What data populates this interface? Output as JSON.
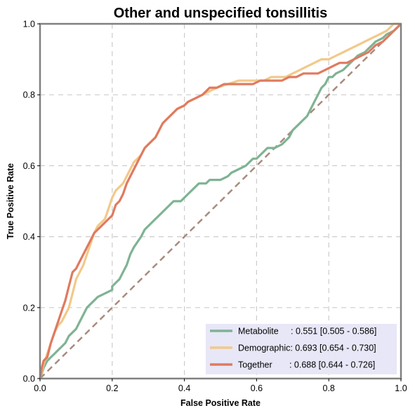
{
  "chart_data": {
    "type": "line",
    "title": "Other and unspecified tonsillitis",
    "xlabel": "False Positive Rate",
    "ylabel": "True Positive Rate",
    "xlim": [
      0,
      1
    ],
    "ylim": [
      0,
      1
    ],
    "xticks": [
      "0.0",
      "0.2",
      "0.4",
      "0.6",
      "0.8",
      "1.0"
    ],
    "yticks": [
      "0.0",
      "0.2",
      "0.4",
      "0.6",
      "0.8",
      "1.0"
    ],
    "grid": true,
    "legend_position": "bottom-right",
    "diagonal_color": "#a98b7d",
    "series": [
      {
        "name": "Metabolite",
        "legend_label": "Metabolite     : 0.551 [0.505 - 0.586]",
        "color": "#7fb393",
        "points": [
          [
            0,
            0
          ],
          [
            0.01,
            0.03
          ],
          [
            0.02,
            0.05
          ],
          [
            0.03,
            0.06
          ],
          [
            0.04,
            0.07
          ],
          [
            0.05,
            0.08
          ],
          [
            0.06,
            0.09
          ],
          [
            0.07,
            0.1
          ],
          [
            0.08,
            0.12
          ],
          [
            0.09,
            0.13
          ],
          [
            0.1,
            0.14
          ],
          [
            0.11,
            0.16
          ],
          [
            0.12,
            0.18
          ],
          [
            0.13,
            0.2
          ],
          [
            0.14,
            0.21
          ],
          [
            0.15,
            0.22
          ],
          [
            0.16,
            0.23
          ],
          [
            0.18,
            0.24
          ],
          [
            0.2,
            0.25
          ],
          [
            0.2,
            0.26
          ],
          [
            0.21,
            0.27
          ],
          [
            0.22,
            0.28
          ],
          [
            0.23,
            0.3
          ],
          [
            0.24,
            0.32
          ],
          [
            0.25,
            0.35
          ],
          [
            0.26,
            0.37
          ],
          [
            0.28,
            0.4
          ],
          [
            0.29,
            0.42
          ],
          [
            0.31,
            0.44
          ],
          [
            0.33,
            0.46
          ],
          [
            0.35,
            0.48
          ],
          [
            0.37,
            0.5
          ],
          [
            0.39,
            0.5
          ],
          [
            0.41,
            0.52
          ],
          [
            0.43,
            0.54
          ],
          [
            0.44,
            0.55
          ],
          [
            0.46,
            0.55
          ],
          [
            0.47,
            0.56
          ],
          [
            0.5,
            0.56
          ],
          [
            0.52,
            0.57
          ],
          [
            0.53,
            0.58
          ],
          [
            0.55,
            0.59
          ],
          [
            0.57,
            0.6
          ],
          [
            0.59,
            0.62
          ],
          [
            0.6,
            0.62
          ],
          [
            0.61,
            0.63
          ],
          [
            0.62,
            0.64
          ],
          [
            0.63,
            0.65
          ],
          [
            0.65,
            0.65
          ],
          [
            0.67,
            0.66
          ],
          [
            0.68,
            0.67
          ],
          [
            0.69,
            0.68
          ],
          [
            0.7,
            0.7
          ],
          [
            0.72,
            0.72
          ],
          [
            0.73,
            0.73
          ],
          [
            0.74,
            0.74
          ],
          [
            0.75,
            0.76
          ],
          [
            0.76,
            0.78
          ],
          [
            0.77,
            0.8
          ],
          [
            0.78,
            0.82
          ],
          [
            0.79,
            0.83
          ],
          [
            0.8,
            0.85
          ],
          [
            0.81,
            0.85
          ],
          [
            0.82,
            0.86
          ],
          [
            0.84,
            0.87
          ],
          [
            0.85,
            0.88
          ],
          [
            0.86,
            0.89
          ],
          [
            0.87,
            0.9
          ],
          [
            0.88,
            0.91
          ],
          [
            0.9,
            0.92
          ],
          [
            0.91,
            0.93
          ],
          [
            0.92,
            0.94
          ],
          [
            0.93,
            0.95
          ],
          [
            0.95,
            0.96
          ],
          [
            0.96,
            0.97
          ],
          [
            0.98,
            0.98
          ],
          [
            0.99,
            0.99
          ],
          [
            1,
            1
          ]
        ]
      },
      {
        "name": "Demographic",
        "legend_label": "Demographic: 0.693 [0.654 - 0.730]",
        "color": "#f2c98a",
        "points": [
          [
            0,
            0
          ],
          [
            0.01,
            0.04
          ],
          [
            0.02,
            0.07
          ],
          [
            0.03,
            0.1
          ],
          [
            0.04,
            0.13
          ],
          [
            0.05,
            0.15
          ],
          [
            0.06,
            0.16
          ],
          [
            0.07,
            0.18
          ],
          [
            0.08,
            0.2
          ],
          [
            0.09,
            0.24
          ],
          [
            0.1,
            0.28
          ],
          [
            0.11,
            0.3
          ],
          [
            0.12,
            0.32
          ],
          [
            0.13,
            0.35
          ],
          [
            0.14,
            0.38
          ],
          [
            0.15,
            0.41
          ],
          [
            0.16,
            0.43
          ],
          [
            0.18,
            0.45
          ],
          [
            0.19,
            0.48
          ],
          [
            0.2,
            0.51
          ],
          [
            0.21,
            0.53
          ],
          [
            0.23,
            0.55
          ],
          [
            0.24,
            0.57
          ],
          [
            0.25,
            0.59
          ],
          [
            0.26,
            0.61
          ],
          [
            0.27,
            0.62
          ],
          [
            0.28,
            0.63
          ],
          [
            0.29,
            0.65
          ],
          [
            0.3,
            0.66
          ],
          [
            0.32,
            0.68
          ],
          [
            0.33,
            0.7
          ],
          [
            0.34,
            0.72
          ],
          [
            0.35,
            0.73
          ],
          [
            0.36,
            0.74
          ],
          [
            0.37,
            0.75
          ],
          [
            0.38,
            0.76
          ],
          [
            0.4,
            0.77
          ],
          [
            0.41,
            0.78
          ],
          [
            0.43,
            0.79
          ],
          [
            0.45,
            0.8
          ],
          [
            0.47,
            0.81
          ],
          [
            0.49,
            0.82
          ],
          [
            0.52,
            0.83
          ],
          [
            0.55,
            0.84
          ],
          [
            0.58,
            0.84
          ],
          [
            0.6,
            0.84
          ],
          [
            0.62,
            0.84
          ],
          [
            0.64,
            0.85
          ],
          [
            0.66,
            0.85
          ],
          [
            0.68,
            0.85
          ],
          [
            0.7,
            0.86
          ],
          [
            0.72,
            0.87
          ],
          [
            0.74,
            0.88
          ],
          [
            0.76,
            0.89
          ],
          [
            0.78,
            0.9
          ],
          [
            0.8,
            0.9
          ],
          [
            0.82,
            0.91
          ],
          [
            0.84,
            0.92
          ],
          [
            0.86,
            0.93
          ],
          [
            0.88,
            0.94
          ],
          [
            0.9,
            0.95
          ],
          [
            0.92,
            0.96
          ],
          [
            0.94,
            0.97
          ],
          [
            0.96,
            0.98
          ],
          [
            0.97,
            0.99
          ],
          [
            0.98,
            1
          ],
          [
            1,
            1
          ]
        ]
      },
      {
        "name": "Together",
        "legend_label": "Together       : 0.688 [0.644 - 0.726]",
        "color": "#e07a5f",
        "points": [
          [
            0,
            0
          ],
          [
            0.005,
            0.03
          ],
          [
            0.01,
            0.05
          ],
          [
            0.02,
            0.06
          ],
          [
            0.03,
            0.1
          ],
          [
            0.04,
            0.13
          ],
          [
            0.05,
            0.16
          ],
          [
            0.06,
            0.19
          ],
          [
            0.07,
            0.22
          ],
          [
            0.08,
            0.26
          ],
          [
            0.09,
            0.3
          ],
          [
            0.1,
            0.31
          ],
          [
            0.11,
            0.33
          ],
          [
            0.12,
            0.35
          ],
          [
            0.13,
            0.37
          ],
          [
            0.14,
            0.39
          ],
          [
            0.15,
            0.41
          ],
          [
            0.17,
            0.43
          ],
          [
            0.18,
            0.44
          ],
          [
            0.2,
            0.46
          ],
          [
            0.21,
            0.49
          ],
          [
            0.22,
            0.5
          ],
          [
            0.23,
            0.52
          ],
          [
            0.24,
            0.55
          ],
          [
            0.25,
            0.57
          ],
          [
            0.26,
            0.59
          ],
          [
            0.27,
            0.61
          ],
          [
            0.28,
            0.63
          ],
          [
            0.29,
            0.65
          ],
          [
            0.3,
            0.66
          ],
          [
            0.31,
            0.67
          ],
          [
            0.32,
            0.68
          ],
          [
            0.33,
            0.7
          ],
          [
            0.34,
            0.72
          ],
          [
            0.35,
            0.73
          ],
          [
            0.36,
            0.74
          ],
          [
            0.37,
            0.75
          ],
          [
            0.38,
            0.76
          ],
          [
            0.4,
            0.77
          ],
          [
            0.41,
            0.78
          ],
          [
            0.43,
            0.79
          ],
          [
            0.45,
            0.8
          ],
          [
            0.47,
            0.82
          ],
          [
            0.49,
            0.82
          ],
          [
            0.51,
            0.83
          ],
          [
            0.53,
            0.83
          ],
          [
            0.55,
            0.83
          ],
          [
            0.57,
            0.83
          ],
          [
            0.59,
            0.83
          ],
          [
            0.61,
            0.84
          ],
          [
            0.63,
            0.84
          ],
          [
            0.65,
            0.84
          ],
          [
            0.67,
            0.84
          ],
          [
            0.69,
            0.85
          ],
          [
            0.71,
            0.85
          ],
          [
            0.73,
            0.86
          ],
          [
            0.75,
            0.86
          ],
          [
            0.77,
            0.86
          ],
          [
            0.79,
            0.87
          ],
          [
            0.81,
            0.88
          ],
          [
            0.83,
            0.89
          ],
          [
            0.85,
            0.89
          ],
          [
            0.87,
            0.9
          ],
          [
            0.89,
            0.91
          ],
          [
            0.91,
            0.92
          ],
          [
            0.93,
            0.94
          ],
          [
            0.95,
            0.95
          ],
          [
            0.97,
            0.97
          ],
          [
            0.98,
            0.98
          ],
          [
            1,
            1
          ]
        ]
      }
    ]
  }
}
